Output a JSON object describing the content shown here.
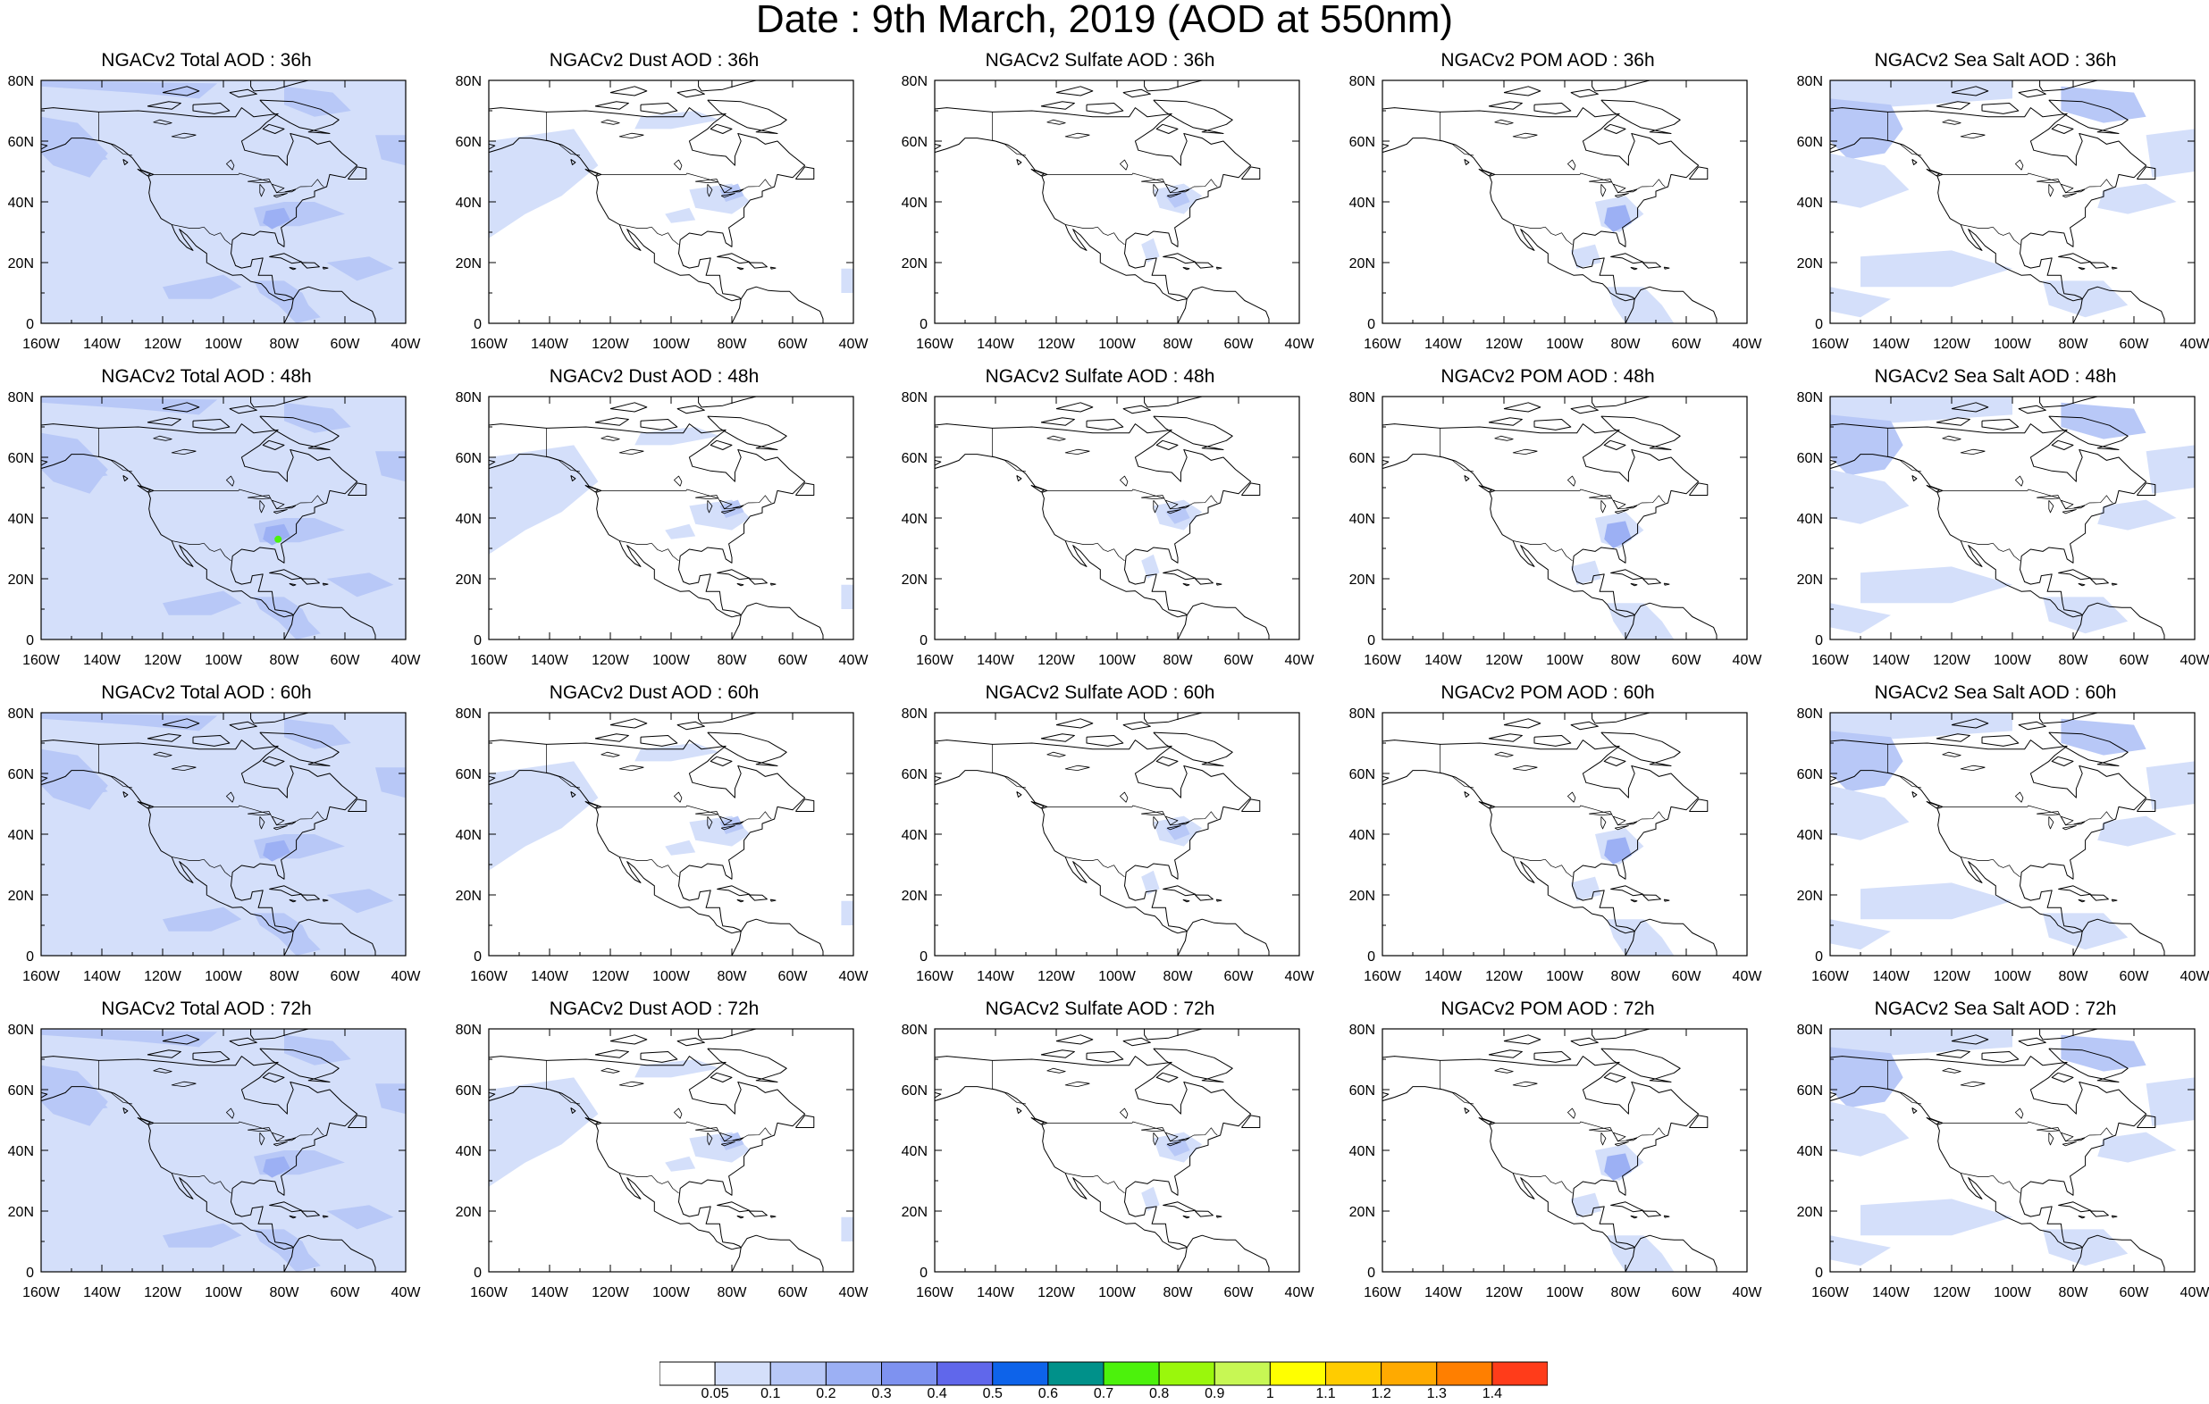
{
  "title": "Date : 9th March, 2019 (AOD at 550nm)",
  "panels": [
    {
      "title": "NGACv2 Total AOD : 36h",
      "variable": "total"
    },
    {
      "title": "NGACv2 Dust AOD : 36h",
      "variable": "dust"
    },
    {
      "title": "NGACv2 Sulfate AOD : 36h",
      "variable": "sulfate"
    },
    {
      "title": "NGACv2 POM AOD : 36h",
      "variable": "pom"
    },
    {
      "title": "NGACv2 Sea Salt AOD : 36h",
      "variable": "seasalt"
    },
    {
      "title": "NGACv2 Total AOD : 48h",
      "variable": "total"
    },
    {
      "title": "NGACv2 Dust AOD : 48h",
      "variable": "dust"
    },
    {
      "title": "NGACv2 Sulfate AOD : 48h",
      "variable": "sulfate"
    },
    {
      "title": "NGACv2 POM AOD : 48h",
      "variable": "pom"
    },
    {
      "title": "NGACv2 Sea Salt AOD : 48h",
      "variable": "seasalt"
    },
    {
      "title": "NGACv2 Total AOD : 60h",
      "variable": "total"
    },
    {
      "title": "NGACv2 Dust AOD : 60h",
      "variable": "dust"
    },
    {
      "title": "NGACv2 Sulfate AOD : 60h",
      "variable": "sulfate"
    },
    {
      "title": "NGACv2 POM AOD : 60h",
      "variable": "pom"
    },
    {
      "title": "NGACv2 Sea Salt AOD : 60h",
      "variable": "seasalt"
    },
    {
      "title": "NGACv2 Total AOD : 72h",
      "variable": "total"
    },
    {
      "title": "NGACv2 Dust AOD : 72h",
      "variable": "dust"
    },
    {
      "title": "NGACv2 Sulfate AOD : 72h",
      "variable": "sulfate"
    },
    {
      "title": "NGACv2 POM AOD : 72h",
      "variable": "pom"
    },
    {
      "title": "NGACv2 Sea Salt  AOD : 72h",
      "variable": "seasalt"
    }
  ],
  "axes": {
    "lon_labels": [
      "160W",
      "140W",
      "120W",
      "100W",
      "80W",
      "60W",
      "40W"
    ],
    "lat_labels": [
      "0",
      "20N",
      "40N",
      "60N",
      "80N"
    ],
    "lon_range": [
      -160,
      -40
    ],
    "lat_range": [
      0,
      80
    ]
  },
  "colorbar": {
    "colors": [
      "#ffffff",
      "#d4dffa",
      "#b8c8f7",
      "#9cb0f4",
      "#7e92f0",
      "#6067eb",
      "#0d63ea",
      "#00918a",
      "#4cf20c",
      "#9af70c",
      "#c7f754",
      "#ffff00",
      "#ffcc00",
      "#ffaa00",
      "#ff7f00",
      "#ff3c1a"
    ],
    "labels": [
      "0.05",
      "0.1",
      "0.2",
      "0.3",
      "0.4",
      "0.5",
      "0.6",
      "0.7",
      "0.8",
      "0.9",
      "1",
      "1.1",
      "1.2",
      "1.3",
      "1.4"
    ]
  },
  "colors": {
    "light": "#d4dffa",
    "medium": "#b8c8f7",
    "strong": "#9cb0f4",
    "deep": "#7e92f0",
    "hotspot": "#4cf20c",
    "coastline": "#000000"
  }
}
